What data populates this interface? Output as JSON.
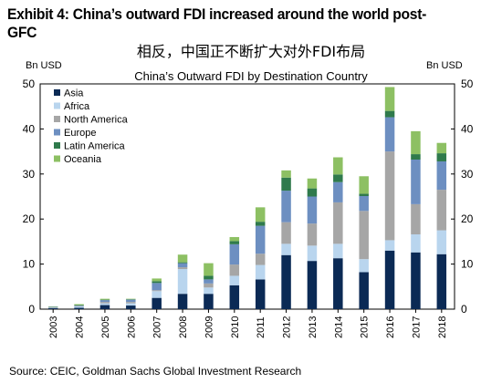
{
  "header": {
    "title": "Exhibit 4: China’s outward FDI increased around the world post-GFC",
    "subtitle_cn": "相反，中国正不断扩大对外FDI布局"
  },
  "footer": {
    "source": "Source: CEIC, Goldman Sachs Global Investment Research"
  },
  "chart_data": {
    "type": "bar",
    "stacked": true,
    "title": "China’s Outward FDI by Destination Country",
    "ylabel_left": "Bn USD",
    "ylabel_right": "Bn USD",
    "ylim": [
      0,
      50
    ],
    "yticks": [
      0,
      10,
      20,
      30,
      40,
      50
    ],
    "grid": false,
    "legend_position": "top-left",
    "categories": [
      "2003",
      "2004",
      "2005",
      "2006",
      "2007",
      "2008",
      "2009",
      "2010",
      "2011",
      "2012",
      "2013",
      "2014",
      "2015",
      "2016",
      "2017",
      "2018"
    ],
    "series": [
      {
        "name": "Asia",
        "color": "#0b2a55",
        "values": [
          0.2,
          0.3,
          0.9,
          0.8,
          2.5,
          3.4,
          3.4,
          5.3,
          6.6,
          12.0,
          10.7,
          11.3,
          8.2,
          13.0,
          12.6,
          12.2
        ]
      },
      {
        "name": "Africa",
        "color": "#b9d5ee",
        "values": [
          0.1,
          0.3,
          0.4,
          0.5,
          1.5,
          5.5,
          1.4,
          2.1,
          3.2,
          2.5,
          3.4,
          3.2,
          2.9,
          2.3,
          4.0,
          5.3
        ]
      },
      {
        "name": "North America",
        "color": "#a6a6a6",
        "values": [
          0.1,
          0.1,
          0.3,
          0.3,
          0.2,
          0.4,
          0.9,
          2.5,
          2.5,
          4.8,
          4.9,
          9.2,
          10.7,
          19.7,
          6.7,
          9.0
        ]
      },
      {
        "name": "Europe",
        "color": "#6d8fc1",
        "values": [
          0.1,
          0.1,
          0.4,
          0.5,
          1.6,
          0.9,
          0.9,
          4.5,
          6.2,
          7.0,
          6.0,
          4.5,
          3.3,
          7.6,
          9.9,
          6.3
        ]
      },
      {
        "name": "Latin America",
        "color": "#2f7a4c",
        "values": [
          0.0,
          0.1,
          0.1,
          0.1,
          0.4,
          0.2,
          0.8,
          0.7,
          0.9,
          2.9,
          1.8,
          1.7,
          0.5,
          1.4,
          1.2,
          1.8
        ]
      },
      {
        "name": "Oceania",
        "color": "#8dc063",
        "values": [
          0.1,
          0.2,
          0.2,
          0.1,
          0.6,
          1.7,
          2.8,
          0.9,
          3.2,
          1.6,
          2.2,
          3.8,
          3.9,
          5.3,
          5.1,
          2.3
        ]
      }
    ]
  }
}
